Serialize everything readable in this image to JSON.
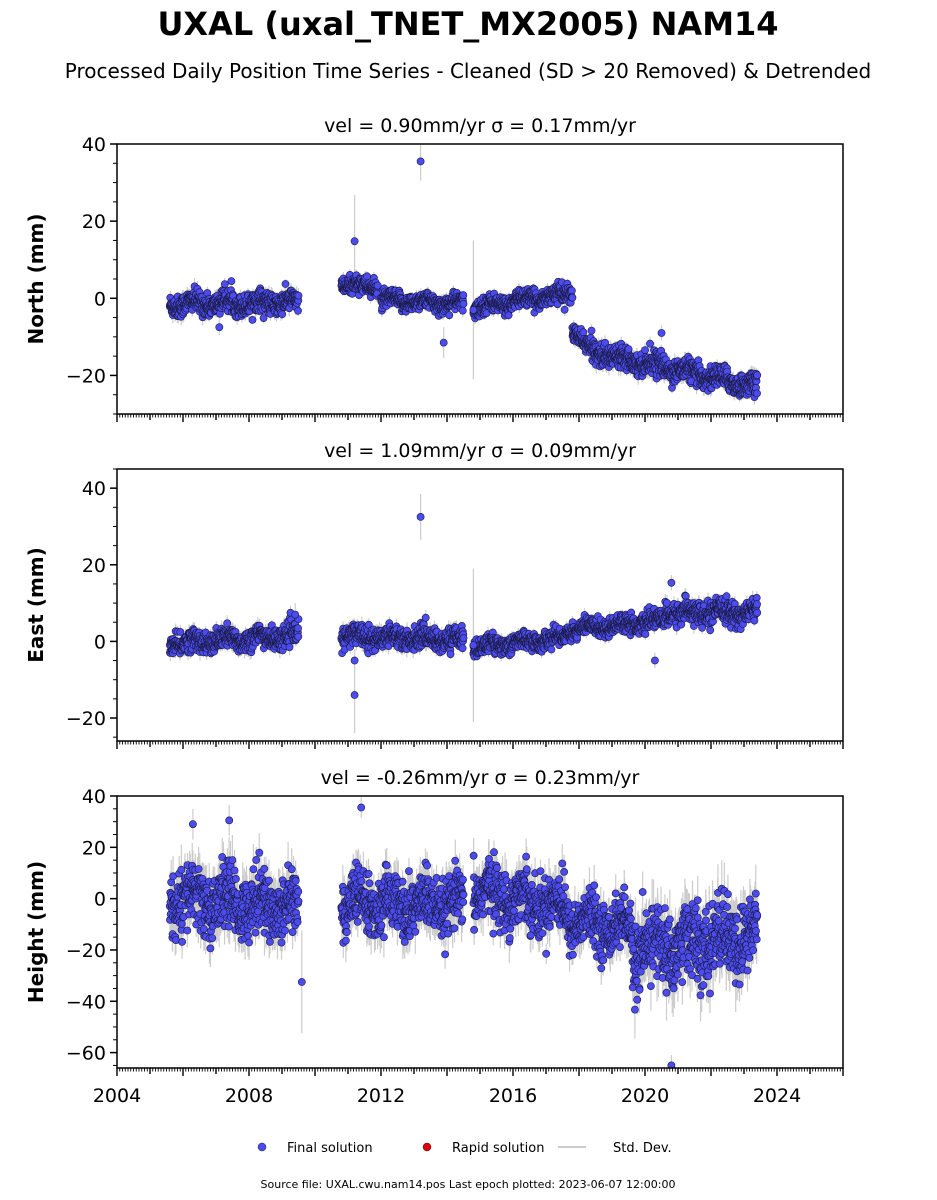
{
  "title": "UXAL (uxal_TNET_MX2005) NAM14",
  "subtitle": "Processed Daily Position Time Series - Cleaned (SD > 20 Removed) & Detrended",
  "footer": "Source file: UXAL.cwu.nam14.pos  Last epoch plotted: 2023-06-07 12:00:00",
  "colors": {
    "final": "#4b4bf0",
    "rapid": "#e00000",
    "stddev": "#bbbbbb",
    "marker_edge": "#1a1a40"
  },
  "legend": [
    {
      "label": "Final solution",
      "kind": "marker",
      "color": "#4b4bf0"
    },
    {
      "label": "Rapid solution",
      "kind": "marker",
      "color": "#e00000"
    },
    {
      "label": "Std. Dev.",
      "kind": "line",
      "color": "#bbbbbb"
    }
  ],
  "chart_data": [
    {
      "type": "scatter",
      "title": "vel = 0.90mm/yr   σ = 0.17mm/yr",
      "ylabel": "North (mm)",
      "xlim": [
        2004.0,
        2026.0
      ],
      "ylim": [
        -30,
        40
      ],
      "yticks": [
        -20,
        0,
        20,
        40
      ],
      "yticklabels": [
        "−20",
        "0",
        "20",
        "40"
      ],
      "xticks": [
        2004,
        2008,
        2012,
        2016,
        2020,
        2024
      ],
      "xticklabels": [],
      "series_envelope": [
        {
          "x": [
            2005.6,
            2009.5
          ],
          "center": [
            -1.5,
            -1.0
          ],
          "spread": 2.5
        },
        {
          "x": [
            2010.8,
            2011.9
          ],
          "center": [
            3.5,
            3.0
          ],
          "spread": 2.0
        },
        {
          "x": [
            2012.0,
            2014.5
          ],
          "center": [
            -0.5,
            -1.5
          ],
          "spread": 2.0
        },
        {
          "x": [
            2014.8,
            2017.8
          ],
          "center": [
            -2.5,
            1.5
          ],
          "spread": 2.0
        },
        {
          "x": [
            2017.8,
            2018.3
          ],
          "center": [
            -8.0,
            -13.0
          ],
          "spread": 2.0
        },
        {
          "x": [
            2018.3,
            2023.4
          ],
          "center": [
            -13.5,
            -23.0
          ],
          "spread": 2.5
        }
      ],
      "outliers": [
        {
          "x": 2013.2,
          "y": 35.5,
          "err": 5
        },
        {
          "x": 2011.2,
          "y": 14.8,
          "err": 12
        },
        {
          "x": 2013.9,
          "y": -11.5,
          "err": 4
        },
        {
          "x": 2014.8,
          "y": -3,
          "err": 18
        },
        {
          "x": 2020.5,
          "y": -9,
          "err": 2
        },
        {
          "x": 2007.1,
          "y": -7.5,
          "err": 2
        }
      ]
    },
    {
      "type": "scatter",
      "title": "vel = 1.09mm/yr   σ = 0.09mm/yr",
      "ylabel": "East (mm)",
      "xlim": [
        2004.0,
        2026.0
      ],
      "ylim": [
        -26,
        45
      ],
      "yticks": [
        -20,
        0,
        20,
        40
      ],
      "yticklabels": [
        "−20",
        "0",
        "20",
        "40"
      ],
      "xticks": [
        2004,
        2008,
        2012,
        2016,
        2020,
        2024
      ],
      "xticklabels": [],
      "series_envelope": [
        {
          "x": [
            2005.6,
            2009.5
          ],
          "center": [
            -0.5,
            1.5
          ],
          "spread": 2.5
        },
        {
          "x": [
            2010.8,
            2014.5
          ],
          "center": [
            1.5,
            0.5
          ],
          "spread": 2.5
        },
        {
          "x": [
            2014.8,
            2017.6
          ],
          "center": [
            -1.5,
            1.0
          ],
          "spread": 2.0
        },
        {
          "x": [
            2017.6,
            2020.6
          ],
          "center": [
            3.0,
            5.5
          ],
          "spread": 2.0
        },
        {
          "x": [
            2020.6,
            2023.4
          ],
          "center": [
            7.5,
            7.5
          ],
          "spread": 2.5
        }
      ],
      "outliers": [
        {
          "x": 2013.2,
          "y": 32.5,
          "err": 6
        },
        {
          "x": 2011.2,
          "y": -14,
          "err": 10
        },
        {
          "x": 2011.2,
          "y": -5,
          "err": 3
        },
        {
          "x": 2014.8,
          "y": -1,
          "err": 20
        },
        {
          "x": 2020.8,
          "y": 15.3,
          "err": 2
        },
        {
          "x": 2020.3,
          "y": -5,
          "err": 2
        },
        {
          "x": 2009.4,
          "y": 7,
          "err": 3
        }
      ]
    },
    {
      "type": "scatter",
      "title": "vel = -0.26mm/yr   σ = 0.23mm/yr",
      "ylabel": "Height (mm)",
      "xlim": [
        2004.0,
        2026.0
      ],
      "ylim": [
        -66,
        40
      ],
      "yticks": [
        -60,
        -40,
        -20,
        0,
        20,
        40
      ],
      "yticklabels": [
        "−60",
        "−40",
        "−20",
        "0",
        "20",
        "40"
      ],
      "xticks": [
        2004,
        2008,
        2012,
        2016,
        2020,
        2024
      ],
      "xticklabels": [
        "2004",
        "2008",
        "2012",
        "2016",
        "2020",
        "2024"
      ],
      "series_envelope": [
        {
          "x": [
            2005.6,
            2009.5
          ],
          "center": [
            0,
            -3
          ],
          "spread": 11
        },
        {
          "x": [
            2010.8,
            2014.5
          ],
          "center": [
            -2,
            -3
          ],
          "spread": 10
        },
        {
          "x": [
            2014.8,
            2017.6
          ],
          "center": [
            3,
            -3
          ],
          "spread": 10
        },
        {
          "x": [
            2017.6,
            2019.6
          ],
          "center": [
            -8,
            -12
          ],
          "spread": 9
        },
        {
          "x": [
            2019.6,
            2023.4
          ],
          "center": [
            -20,
            -15
          ],
          "spread": 13
        }
      ],
      "outliers": [
        {
          "x": 2011.4,
          "y": 35.5,
          "err": 4
        },
        {
          "x": 2009.6,
          "y": -32.5,
          "err": 20
        },
        {
          "x": 2020.8,
          "y": -65,
          "err": 4
        },
        {
          "x": 2006.3,
          "y": 29,
          "err": 6
        },
        {
          "x": 2007.4,
          "y": 30.5,
          "err": 6
        }
      ]
    }
  ]
}
